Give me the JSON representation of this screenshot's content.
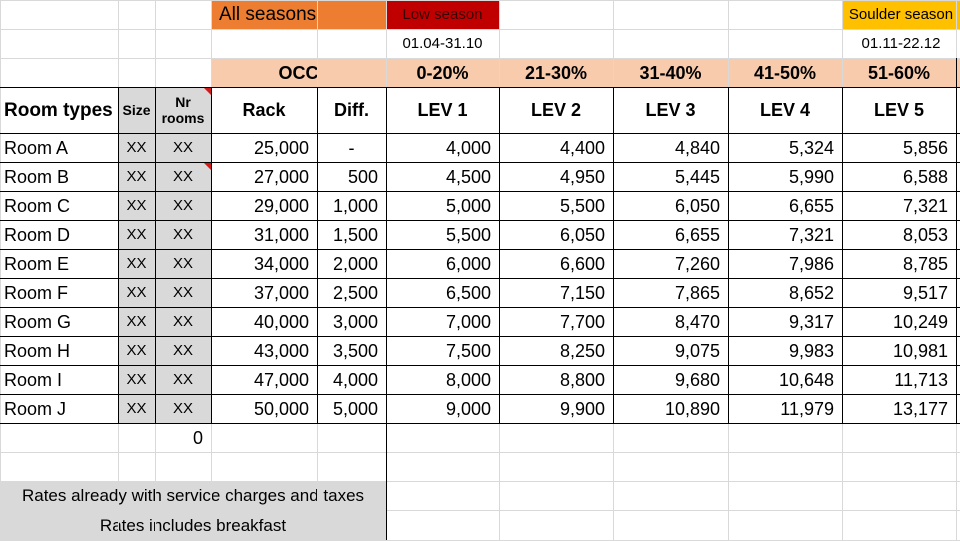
{
  "colors": {
    "all_seasons_bg": "#ed7d31",
    "low_season_bg": "#c00000",
    "low_season_text": "#3a0000",
    "shoulder_season_bg": "#ffc000",
    "occ_row_bg": "#f8cbad",
    "grey_cell_bg": "#d9d9d9",
    "comment_marker": "#d21a1a"
  },
  "header": {
    "all_seasons": "All seasons",
    "low_season": "Low season",
    "low_season_dates": "01.04-31.10",
    "shoulder_season": "Soulder season",
    "shoulder_season_dates": "01.11-22.12",
    "occ_label": "OCC",
    "occ_ranges": [
      "0-20%",
      "21-30%",
      "31-40%",
      "41-50%",
      "51-60%"
    ]
  },
  "columns": {
    "room_types": "Room types",
    "size": "Size",
    "nr_rooms_1": "Nr",
    "nr_rooms_2": "rooms",
    "rack": "Rack",
    "diff": "Diff.",
    "levels": [
      "LEV 1",
      "LEV 2",
      "LEV 3",
      "LEV 4",
      "LEV 5"
    ]
  },
  "rows": [
    {
      "name": "Room A",
      "size": "XX",
      "nr": "XX",
      "rack": "25,000",
      "diff": "-",
      "lev": [
        "4,000",
        "4,400",
        "4,840",
        "5,324",
        "5,856"
      ]
    },
    {
      "name": "Room B",
      "size": "XX",
      "nr": "XX",
      "rack": "27,000",
      "diff": "500",
      "lev": [
        "4,500",
        "4,950",
        "5,445",
        "5,990",
        "6,588"
      ]
    },
    {
      "name": "Room C",
      "size": "XX",
      "nr": "XX",
      "rack": "29,000",
      "diff": "1,000",
      "lev": [
        "5,000",
        "5,500",
        "6,050",
        "6,655",
        "7,321"
      ]
    },
    {
      "name": "Room D",
      "size": "XX",
      "nr": "XX",
      "rack": "31,000",
      "diff": "1,500",
      "lev": [
        "5,500",
        "6,050",
        "6,655",
        "7,321",
        "8,053"
      ]
    },
    {
      "name": "Room E",
      "size": "XX",
      "nr": "XX",
      "rack": "34,000",
      "diff": "2,000",
      "lev": [
        "6,000",
        "6,600",
        "7,260",
        "7,986",
        "8,785"
      ]
    },
    {
      "name": "Room F",
      "size": "XX",
      "nr": "XX",
      "rack": "37,000",
      "diff": "2,500",
      "lev": [
        "6,500",
        "7,150",
        "7,865",
        "8,652",
        "9,517"
      ]
    },
    {
      "name": "Room G",
      "size": "XX",
      "nr": "XX",
      "rack": "40,000",
      "diff": "3,000",
      "lev": [
        "7,000",
        "7,700",
        "8,470",
        "9,317",
        "10,249"
      ]
    },
    {
      "name": "Room H",
      "size": "XX",
      "nr": "XX",
      "rack": "43,000",
      "diff": "3,500",
      "lev": [
        "7,500",
        "8,250",
        "9,075",
        "9,983",
        "10,981"
      ]
    },
    {
      "name": "Room I",
      "size": "XX",
      "nr": "XX",
      "rack": "47,000",
      "diff": "4,000",
      "lev": [
        "8,000",
        "8,800",
        "9,680",
        "10,648",
        "11,713"
      ]
    },
    {
      "name": "Room J",
      "size": "XX",
      "nr": "XX",
      "rack": "50,000",
      "diff": "5,000",
      "lev": [
        "9,000",
        "9,900",
        "10,890",
        "11,979",
        "13,177"
      ]
    }
  ],
  "total_rooms": "0",
  "notes": {
    "line1": "Rates already with service charges and taxes",
    "line2": "Rates includes breakfast"
  }
}
